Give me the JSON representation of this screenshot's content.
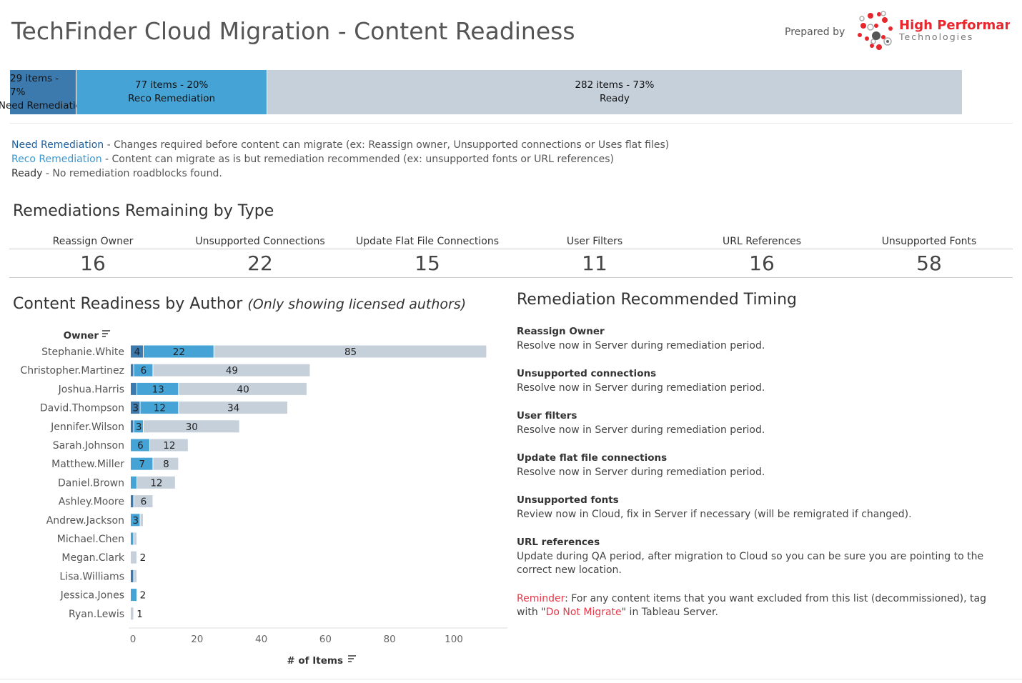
{
  "header": {
    "title": "TechFinder Cloud Migration - Content Readiness",
    "prepared_by": "Prepared by",
    "logo_text": "High Performance Technologies"
  },
  "summary": [
    {
      "line1": "29 items - 7%",
      "line2": "Need Remediation",
      "percent": 7,
      "color": "#3c79ad"
    },
    {
      "line1": "77 items - 20%",
      "line2": "Reco Remediation",
      "percent": 20,
      "color": "#45a3d6"
    },
    {
      "line1": "282 items - 73%",
      "line2": "Ready",
      "percent": 73,
      "color": "#c6d0db"
    }
  ],
  "legend": [
    {
      "term": "Need Remediation",
      "desc": " - Changes required before content can migrate (ex: Reassign owner, Unsupported connections or Uses flat files)",
      "color": "#1f5f9b"
    },
    {
      "term": "Reco Remediation",
      "desc": " - Content can migrate as is but remediation recommended (ex: unsupported fonts or URL references)",
      "color": "#3a97cf"
    },
    {
      "term": "Ready",
      "desc": " - No remediation roadblocks found.",
      "color": "#333333"
    }
  ],
  "remediations": {
    "title": "Remediations Remaining by Type",
    "items": [
      {
        "label": "Reassign Owner",
        "value": "16"
      },
      {
        "label": "Unsupported Connections",
        "value": "22"
      },
      {
        "label": "Update Flat File Connections",
        "value": "15"
      },
      {
        "label": "User Filters",
        "value": "11"
      },
      {
        "label": "URL References",
        "value": "16"
      },
      {
        "label": "Unsupported Fonts",
        "value": "58"
      }
    ]
  },
  "timing": {
    "title": "Remediation Recommended Timing",
    "items": [
      {
        "t": "Reassign Owner",
        "d": "Resolve now in Server during remediation period."
      },
      {
        "t": "Unsupported connections",
        "d": "Resolve now in Server during remediation period."
      },
      {
        "t": "User filters",
        "d": "Resolve now in Server during remediation period."
      },
      {
        "t": "Update flat file connections",
        "d": "Resolve now in Server during remediation period."
      },
      {
        "t": "Unsupported fonts",
        "d": "Review now in Cloud, fix in Server if necessary (will be remigrated if changed)."
      },
      {
        "t": "URL references",
        "d": "Update during QA period, after migration to Cloud so you can be sure you are pointing to the correct new location."
      }
    ],
    "reminder_label": "Reminder",
    "reminder_text": ": For any content items that you want excluded from this list (decommissioned), tag with \"",
    "reminder_tag": "Do Not Migrate",
    "reminder_end": "\" in Tableau Server."
  },
  "chart_data": {
    "type": "bar",
    "orientation": "horizontal",
    "stacked": true,
    "title": "Content Readiness by Author",
    "subtitle": "(Only showing licensed authors)",
    "ylabel": "Owner",
    "xlabel": "# of Items",
    "xlim": [
      0,
      115
    ],
    "xticks": [
      0,
      20,
      40,
      60,
      80,
      100
    ],
    "categories": [
      "Stephanie.White",
      "Christopher.Martinez",
      "Joshua.Harris",
      "David.Thompson",
      "Jennifer.Wilson",
      "Sarah.Johnson",
      "Matthew.Miller",
      "Daniel.Brown",
      "Ashley.Moore",
      "Andrew.Jackson",
      "Michael.Chen",
      "Megan.Clark",
      "Lisa.Williams",
      "Jessica.Jones",
      "Ryan.Lewis"
    ],
    "series": [
      {
        "key": "need",
        "color": "#3c79ad",
        "values": [
          4,
          1,
          2,
          3,
          1,
          0,
          0,
          0,
          1,
          0,
          0,
          0,
          1,
          0,
          0
        ]
      },
      {
        "key": "reco",
        "color": "#45a3d6",
        "values": [
          22,
          6,
          13,
          12,
          3,
          6,
          7,
          2,
          0,
          3,
          1,
          0,
          0,
          2,
          0
        ]
      },
      {
        "key": "ready",
        "color": "#c6d0db",
        "values": [
          85,
          49,
          40,
          34,
          30,
          12,
          8,
          12,
          6,
          1,
          1,
          2,
          1,
          0,
          1
        ]
      }
    ]
  }
}
